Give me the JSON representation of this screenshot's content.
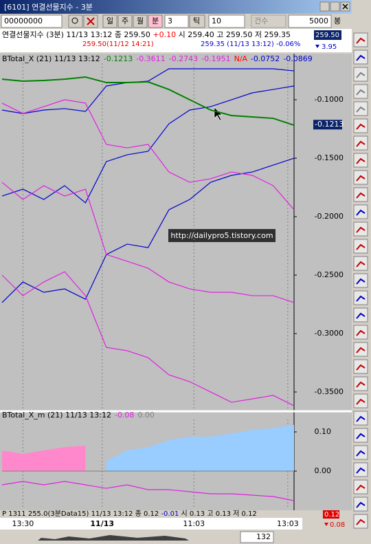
{
  "window": {
    "title": "[6101] 연결선물지수 - 3분"
  },
  "toolbar": {
    "code": "00000000",
    "periods": [
      "일",
      "주",
      "월",
      "분"
    ],
    "minutes": "3",
    "tick_label": "틱",
    "tick": "10",
    "count_label": "건수",
    "count": "5000",
    "unit": "봉"
  },
  "info": {
    "line1_a": "연결선물지수 (3분) 11/13 13:12  종 259.50",
    "line1_change": "+0.10",
    "line1_b": "시 259.40  고 259.50  저 259.35",
    "line2_high": "259.50(11/12 14:21)",
    "line2_low": "259.35 (11/13 13:12) -0.06%",
    "price": "259.50",
    "price_change": "3.95"
  },
  "watermark": "http://dailypro5.tistory.com",
  "chart_data": [
    {
      "type": "line",
      "header": "BTotal_X  (21) 11/13 13:12",
      "legend": [
        {
          "text": "-0.1213",
          "color": "#008000"
        },
        {
          "text": "-0.3611",
          "color": "#e020e0"
        },
        {
          "text": "-0.2743",
          "color": "#e020e0"
        },
        {
          "text": "-0.1951",
          "color": "#e020e0"
        },
        {
          "text": "N/A",
          "color": "#ff0000"
        },
        {
          "text": "-0.0752",
          "color": "#0000cc"
        },
        {
          "text": "-0.0869",
          "color": "#0000cc"
        }
      ],
      "last_label": {
        "value": -0.1213,
        "label": "-0.1213"
      },
      "x": [
        0,
        1,
        2,
        3,
        4,
        5,
        6,
        7,
        8,
        9,
        10,
        11,
        12,
        13,
        14
      ],
      "xlim": [
        0,
        14
      ],
      "xticks": [
        {
          "value": 1,
          "label": "13:30"
        },
        {
          "value": 4.8,
          "label": "11/13"
        },
        {
          "value": 9.2,
          "label": "11:03"
        },
        {
          "value": 13.7,
          "label": "13:03"
        }
      ],
      "xgrid": true,
      "ylim": [
        -0.3659,
        -0.0688
      ],
      "yticks": [
        {
          "value": -0.1,
          "label": "-0.1000"
        },
        {
          "value": -0.15,
          "label": "-0.1500"
        },
        {
          "value": -0.2,
          "label": "-0.2000"
        },
        {
          "value": -0.25,
          "label": "-0.2500"
        },
        {
          "value": -0.3,
          "label": "-0.3000"
        },
        {
          "value": -0.35,
          "label": "-0.3500"
        }
      ],
      "series": [
        {
          "color": "#0000cc",
          "values": [
            -0.1088,
            -0.1118,
            -0.1088,
            -0.1076,
            -0.11,
            -0.0882,
            -0.0853,
            -0.0841,
            -0.0735,
            -0.0735,
            -0.0735,
            -0.0735,
            -0.0735,
            -0.0735,
            -0.0753
          ]
        },
        {
          "color": "#0000cc",
          "values": [
            -0.1824,
            -0.1765,
            -0.1853,
            -0.1735,
            -0.1882,
            -0.1529,
            -0.1471,
            -0.1441,
            -0.1206,
            -0.1088,
            -0.1059,
            -0.1,
            -0.0941,
            -0.0912,
            -0.0882
          ]
        },
        {
          "color": "#0000cc",
          "values": [
            -0.2735,
            -0.2559,
            -0.2647,
            -0.2618,
            -0.2706,
            -0.2324,
            -0.2235,
            -0.2265,
            -0.1941,
            -0.1853,
            -0.1706,
            -0.1647,
            -0.1618,
            -0.1559,
            -0.15
          ]
        },
        {
          "color": "#e020e0",
          "values": [
            -0.1029,
            -0.1118,
            -0.1059,
            -0.1,
            -0.1029,
            -0.1382,
            -0.1412,
            -0.1382,
            -0.1618,
            -0.1706,
            -0.1676,
            -0.1618,
            -0.1647,
            -0.1735,
            -0.1941
          ]
        },
        {
          "color": "#e020e0",
          "values": [
            -0.1706,
            -0.1853,
            -0.1735,
            -0.1824,
            -0.1765,
            -0.2324,
            -0.2382,
            -0.2441,
            -0.2559,
            -0.2618,
            -0.2647,
            -0.2647,
            -0.2676,
            -0.2676,
            -0.2735
          ]
        },
        {
          "color": "#e020e0",
          "values": [
            -0.25,
            -0.2676,
            -0.2559,
            -0.2471,
            -0.2676,
            -0.3118,
            -0.3147,
            -0.3206,
            -0.3353,
            -0.3412,
            -0.35,
            -0.3588,
            -0.3559,
            -0.3529,
            -0.3618
          ]
        },
        {
          "color": "#008000",
          "width": 2,
          "values": [
            -0.0824,
            -0.0841,
            -0.0835,
            -0.0824,
            -0.0806,
            -0.0853,
            -0.0853,
            -0.0847,
            -0.0912,
            -0.1,
            -0.1088,
            -0.1135,
            -0.1147,
            -0.1159,
            -0.1218
          ]
        }
      ]
    },
    {
      "type": "line",
      "header": "BTotal_X_m  (21) 11/13 13:12",
      "legend": [
        {
          "text": "-0.08",
          "color": "#e020e0"
        },
        {
          "text": "0.00",
          "color": "#808080"
        }
      ],
      "x": [
        0,
        1,
        2,
        3,
        4,
        5,
        6,
        7,
        8,
        9,
        10,
        11,
        12,
        13,
        14
      ],
      "xlim": [
        0,
        14
      ],
      "xgrid": true,
      "ylim": [
        -0.0912,
        0.1316
      ],
      "yticks": [
        {
          "value": 0.1,
          "label": "0.10"
        },
        {
          "value": 0,
          "label": "0.00"
        }
      ],
      "series": [
        {
          "color": "#ff88cc",
          "fill": true,
          "values": [
            0.0526,
            0.0439,
            0.0526,
            0.0614,
            0.0649,
            null,
            null,
            null,
            null,
            null,
            null,
            null,
            null,
            null,
            null
          ]
        },
        {
          "color": "#99ccff",
          "fill": true,
          "values": [
            null,
            null,
            null,
            null,
            null,
            0.026,
            0.053,
            0.061,
            0.079,
            0.088,
            0.088,
            0.096,
            0.105,
            0.11,
            0.118
          ]
        },
        {
          "color": "#e020e0",
          "values": [
            -0.0351,
            -0.0263,
            -0.0351,
            -0.0263,
            -0.0351,
            -0.0439,
            -0.0351,
            -0.0474,
            -0.0474,
            -0.0526,
            -0.0579,
            -0.0579,
            -0.0614,
            -0.0649,
            -0.0754
          ]
        }
      ]
    }
  ],
  "status": {
    "text_a": "P 1311 255.0(3분Data15) 11/13 13:12  종 0.12",
    "text_change": "-0.01",
    "text_b": "시 0.13  고 0.13  저 0.12",
    "last": "0.12",
    "change": "0.08"
  },
  "scroll": {
    "count": "132"
  }
}
